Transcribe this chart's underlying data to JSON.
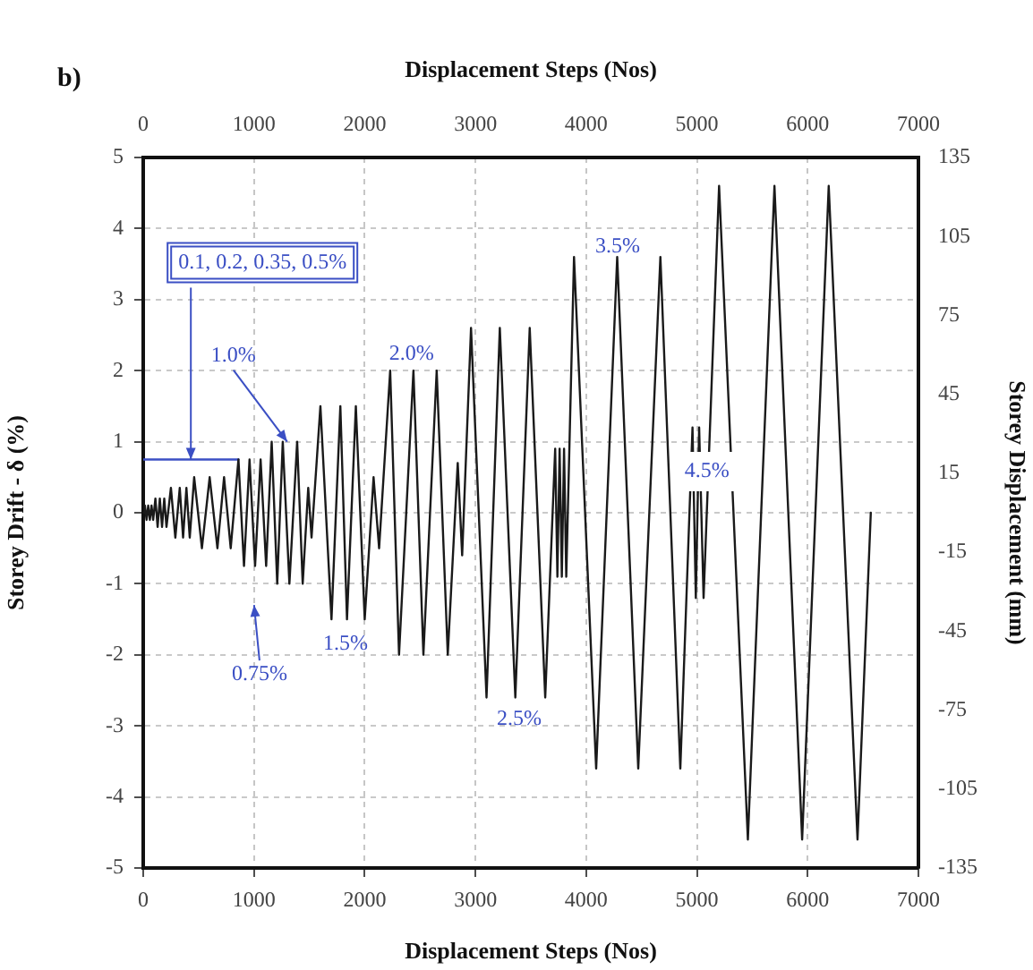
{
  "chart_data": {
    "type": "line",
    "title": "b)",
    "xlabel": "Displacement Steps (Nos)",
    "x2label": "Displacement Steps (Nos)",
    "ylabel": "Storey Drift - δ (%)",
    "y2label": "Storey Displacement (mm)",
    "x": [
      0,
      15,
      30,
      45,
      60,
      75,
      90,
      110,
      130,
      150,
      170,
      190,
      210,
      250,
      290,
      330,
      360,
      390,
      420,
      460,
      530,
      600,
      670,
      730,
      790,
      860,
      910,
      960,
      1010,
      1060,
      1110,
      1160,
      1210,
      1260,
      1320,
      1390,
      1440,
      1490,
      1520,
      1600,
      1700,
      1780,
      1840,
      1920,
      2000,
      2080,
      2130,
      2230,
      2310,
      2440,
      2530,
      2650,
      2750,
      2840,
      2880,
      2960,
      3100,
      3220,
      3360,
      3490,
      3630,
      3720,
      3740,
      3760,
      3780,
      3800,
      3820,
      3890,
      4090,
      4280,
      4470,
      4670,
      4850,
      4960,
      4990,
      5020,
      5060,
      5200,
      5460,
      5700,
      5950,
      6190,
      6450,
      6570
    ],
    "series": [
      {
        "color": "#1a1a1a",
        "values": [
          0,
          0.1,
          -0.1,
          0.1,
          -0.1,
          0.1,
          -0.1,
          0.2,
          -0.2,
          0.2,
          -0.2,
          0.2,
          -0.2,
          0.35,
          -0.35,
          0.35,
          -0.35,
          0.35,
          -0.35,
          0.5,
          -0.5,
          0.5,
          -0.5,
          0.5,
          -0.5,
          0.75,
          -0.75,
          0.75,
          -0.75,
          0.75,
          -0.75,
          1.0,
          -1.0,
          1.0,
          -1.0,
          1.0,
          -1.0,
          0.35,
          -0.35,
          1.5,
          -1.5,
          1.5,
          -1.5,
          1.5,
          -1.5,
          0.5,
          -0.5,
          2.0,
          -2.0,
          2.0,
          -2.0,
          2.0,
          -2.0,
          0.7,
          -0.6,
          2.6,
          -2.6,
          2.6,
          -2.6,
          2.6,
          -2.6,
          0.9,
          -0.9,
          0.9,
          -0.9,
          0.9,
          -0.9,
          3.6,
          -3.6,
          3.6,
          -3.6,
          3.6,
          -3.6,
          1.2,
          -1.2,
          1.2,
          -1.2,
          4.6,
          -4.6,
          4.6,
          -4.6,
          4.6,
          -4.6,
          0
        ]
      },
      {
        "type": "line",
        "color": "#3b4fc4",
        "x": [
          0,
          860
        ],
        "values": [
          0.75,
          0.75
        ]
      }
    ],
    "xlim": [
      0,
      7000
    ],
    "xticks": [
      0,
      1000,
      2000,
      3000,
      4000,
      5000,
      6000,
      7000
    ],
    "x2lim": [
      0,
      7000
    ],
    "x2ticks": [
      0,
      1000,
      2000,
      3000,
      4000,
      5000,
      6000,
      7000
    ],
    "ylim": [
      -5,
      5
    ],
    "yticks": [
      -5,
      -4,
      -3,
      -2,
      -1,
      0,
      1,
      2,
      3,
      4,
      5
    ],
    "y2lim": [
      -135,
      135
    ],
    "y2ticks": [
      -135,
      -105,
      -75,
      -45,
      -15,
      15,
      45,
      75,
      105,
      135
    ],
    "annotations": [
      {
        "text": "0.1, 0.2, 0.35, 0.5%",
        "x": 430,
        "y": 0.75
      },
      {
        "text": "1.0%",
        "x": 1300,
        "y": 1.0
      },
      "0.75%",
      "1.5%",
      "2.0%",
      "2.5%",
      "3.5%",
      {
        "text": "4.5%",
        "x": 5090,
        "y": 0.58
      }
    ],
    "grid": true,
    "legend": false,
    "marker": "none",
    "line_style": "solid"
  }
}
